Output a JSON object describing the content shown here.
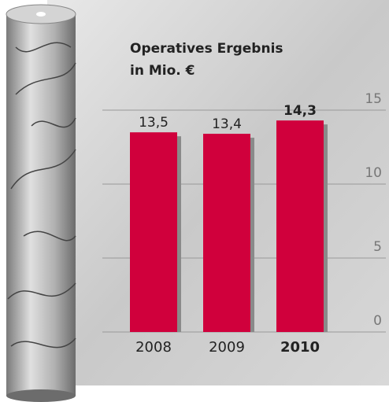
{
  "chart_data": {
    "type": "bar",
    "title": "Operatives Ergebnis",
    "subtitle": "in Mio. €",
    "categories": [
      "2008",
      "2009",
      "2010"
    ],
    "values": [
      13.5,
      13.4,
      14.3
    ],
    "value_labels": [
      "13,5",
      "13,4",
      "14,3"
    ],
    "color": "#d0003c",
    "ylim": [
      0,
      15
    ],
    "yticks": [
      0,
      5,
      10,
      15
    ],
    "grid": true
  }
}
